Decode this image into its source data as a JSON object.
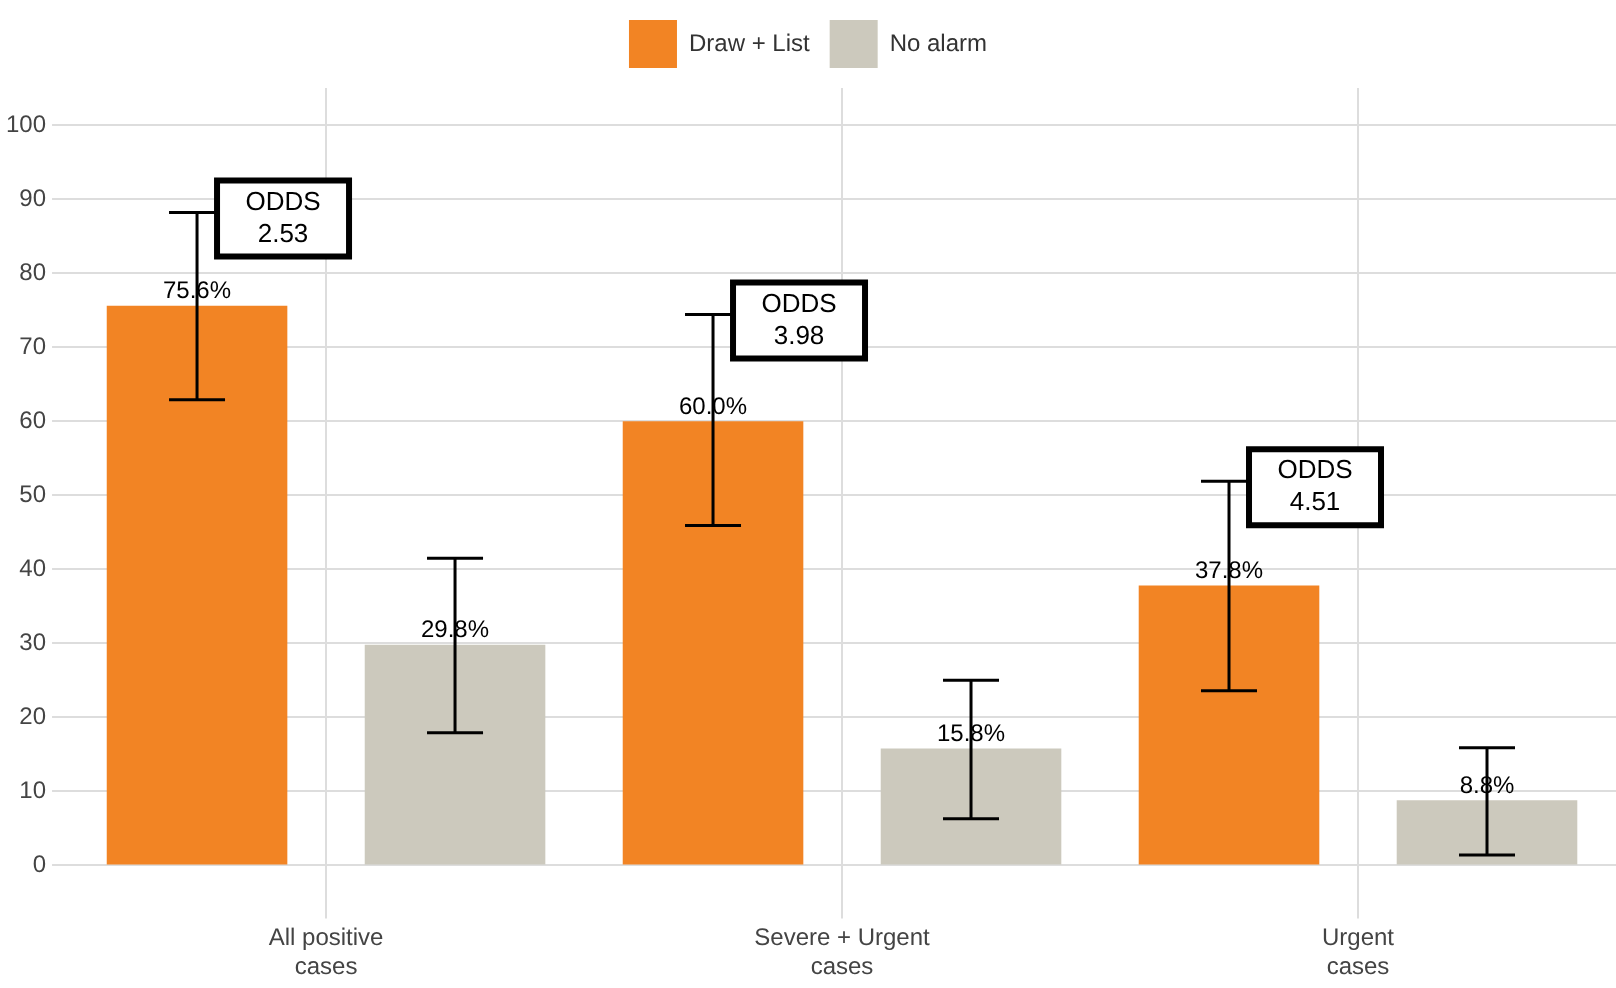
{
  "chart_data": {
    "type": "bar",
    "categories": [
      "All positive\ncases",
      "Severe + Urgent\ncases",
      "Urgent\ncases"
    ],
    "series": [
      {
        "name": "Draw + List",
        "color": "#f28424",
        "values": [
          75.6,
          60.0,
          37.8
        ],
        "errors": [
          [
            62.9,
            88.2
          ],
          [
            45.9,
            74.4
          ],
          [
            23.6,
            51.9
          ]
        ],
        "value_labels": [
          "75.6%",
          "60.0%",
          "37.8%"
        ]
      },
      {
        "name": "No alarm",
        "color": "#ccc9bd",
        "values": [
          29.8,
          15.8,
          8.8
        ],
        "errors": [
          [
            17.9,
            41.5
          ],
          [
            6.3,
            25.0
          ],
          [
            1.4,
            15.9
          ]
        ],
        "value_labels": [
          "29.8%",
          "15.8%",
          "8.8%"
        ]
      }
    ],
    "ylim": [
      -5,
      105
    ],
    "yticks": [
      0,
      10,
      20,
      30,
      40,
      50,
      60,
      70,
      80,
      90,
      100
    ],
    "grid": true,
    "legend": "top",
    "annotations": [
      "ODDS\n2.53",
      "ODDS\n3.98",
      "ODDS\n4.51"
    ]
  }
}
